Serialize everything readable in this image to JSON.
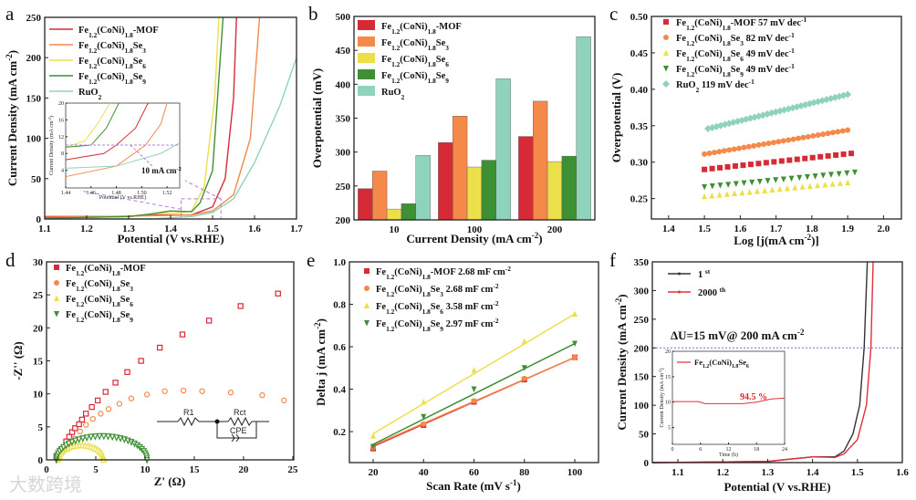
{
  "watermark": "大数跨境",
  "colors": {
    "mof": "#d62b36",
    "se3": "#f4894a",
    "se6": "#ece04a",
    "se9": "#3f8f35",
    "ruo2": "#8fd3bd",
    "purple": "#b77be0",
    "first": "#333333",
    "second": "#e0303a"
  },
  "chart_data": [
    {
      "id": "a",
      "panel_label": "a",
      "type": "line",
      "xlabel": "Potential (V vs.RHE)",
      "ylabel": "Current Density (mA cm^{-2})",
      "xlim": [
        1.1,
        1.7
      ],
      "ylim": [
        0,
        250
      ],
      "xticks": [
        "1.1",
        "1.2",
        "1.3",
        "1.4",
        "1.5",
        "1.6",
        "1.7"
      ],
      "yticks": [
        "0",
        "50",
        "100",
        "150",
        "200",
        "250"
      ],
      "legend": "top-left",
      "series": [
        {
          "name": "Fe_{1.2}(CoNi)_{1.8}-MOF",
          "color": "mof",
          "x": [
            1.1,
            1.3,
            1.35,
            1.45,
            1.5,
            1.53,
            1.55,
            1.557
          ],
          "y": [
            3,
            3,
            5,
            5,
            15,
            50,
            150,
            250
          ]
        },
        {
          "name": "Fe_{1.2}(CoNi)_{1.8}Se_{3}",
          "color": "se3",
          "x": [
            1.1,
            1.35,
            1.45,
            1.5,
            1.55,
            1.59,
            1.612
          ],
          "y": [
            2,
            4,
            5,
            10,
            30,
            100,
            250
          ]
        },
        {
          "name": "Fe_{1.2}(CoNi)_{1.8}Se_{6}",
          "color": "se6",
          "x": [
            1.1,
            1.3,
            1.35,
            1.43,
            1.45,
            1.48,
            1.505,
            1.515
          ],
          "y": [
            1,
            3,
            6,
            8,
            10,
            40,
            150,
            250
          ]
        },
        {
          "name": "Fe_{1.2}(CoNi)_{1.8}Se_{9}",
          "color": "se9",
          "x": [
            1.1,
            1.3,
            1.35,
            1.4,
            1.45,
            1.47,
            1.5,
            1.525
          ],
          "y": [
            1,
            3,
            6,
            10,
            9,
            20,
            60,
            250
          ]
        },
        {
          "name": "RuO_{2}",
          "color": "ruo2",
          "x": [
            1.1,
            1.35,
            1.45,
            1.5,
            1.55,
            1.6,
            1.66,
            1.7
          ],
          "y": [
            0,
            0,
            3,
            8,
            25,
            70,
            140,
            200
          ]
        }
      ],
      "inset": {
        "xlabel": "Potential (V vs.RHE)",
        "ylabel": "Current Density (mA cm^{-2})",
        "xlim": [
          1.44,
          1.53
        ],
        "ylim": [
          -0.2,
          20
        ],
        "xticks": [
          "1.44",
          "1.46",
          "1.48",
          "1.50",
          "1.52"
        ],
        "yticks": [
          "4",
          "8",
          "12",
          "16",
          "20"
        ],
        "annotation": "10 mA cm^{-2}",
        "ref_y": 10,
        "series": [
          {
            "color": "se6",
            "x": [
              1.44,
              1.455,
              1.465,
              1.475
            ],
            "y": [
              9.5,
              11,
              15,
              20
            ]
          },
          {
            "color": "se9",
            "x": [
              1.44,
              1.46,
              1.472,
              1.482
            ],
            "y": [
              9.5,
              10,
              14,
              20
            ]
          },
          {
            "color": "mof",
            "x": [
              1.44,
              1.47,
              1.48,
              1.495,
              1.505
            ],
            "y": [
              6.5,
              8,
              10,
              14,
              20
            ]
          },
          {
            "color": "se3",
            "x": [
              1.44,
              1.48,
              1.503,
              1.515,
              1.52
            ],
            "y": [
              2.5,
              5,
              10,
              15,
              20
            ]
          },
          {
            "color": "ruo2",
            "x": [
              1.44,
              1.48,
              1.515,
              1.53
            ],
            "y": [
              4.5,
              5,
              8,
              10.5
            ]
          }
        ]
      }
    },
    {
      "id": "b",
      "panel_label": "b",
      "type": "bar",
      "xlabel": "Current Density (mA cm^{-2})",
      "ylabel": "Overpotential (mV)",
      "ylim": [
        200,
        500
      ],
      "categories": [
        "10",
        "100",
        "200"
      ],
      "yticks": [
        "200",
        "250",
        "300",
        "350",
        "400",
        "450",
        "500"
      ],
      "legend": "top-left",
      "series": [
        {
          "name": "Fe_{1.2}(CoNi)_{1.8}-MOF",
          "color": "mof",
          "values": [
            246,
            314,
            323
          ]
        },
        {
          "name": "Fe_{1.2}(CoNi)_{1.8}Se_{3}",
          "color": "se3",
          "values": [
            272,
            353,
            375
          ]
        },
        {
          "name": "Fe_{1.2}(CoNi)_{1.8}Se_{6}",
          "color": "se6",
          "values": [
            216,
            278,
            286
          ]
        },
        {
          "name": "Fe_{1.2}(CoNi)_{1.8}Se_{9}",
          "color": "se9",
          "values": [
            224,
            288,
            294
          ]
        },
        {
          "name": "RuO_{2}",
          "color": "ruo2",
          "values": [
            295,
            408,
            470
          ]
        }
      ]
    },
    {
      "id": "c",
      "panel_label": "c",
      "type": "scatter",
      "xlabel": "Log [j(mA cm^{-2})]",
      "ylabel": "Overpotential (V)",
      "xlim": [
        1.352,
        2.05
      ],
      "ylim": [
        0.222,
        0.5
      ],
      "xticks": [
        "1.4",
        "1.5",
        "1.6",
        "1.7",
        "1.8",
        "1.9",
        "2.0"
      ],
      "yticks": [
        "0.25",
        "0.30",
        "0.35",
        "0.40",
        "0.45",
        "0.50"
      ],
      "legend": "top-left",
      "series": [
        {
          "name": "Fe_{1.2}(CoNi)_{1.8}-MOF  57 mV dec^{-1}",
          "color": "mof",
          "marker": "square",
          "x_range": [
            1.5,
            1.91
          ],
          "y_range": [
            0.29,
            0.312
          ],
          "n": 20
        },
        {
          "name": "Fe_{1.2}(CoNi)_{1.8}Se_{3}  82 mV dec^{-1}",
          "color": "se3",
          "marker": "circle",
          "x_range": [
            1.5,
            1.9
          ],
          "y_range": [
            0.311,
            0.344
          ],
          "n": 30
        },
        {
          "name": "Fe_{1.2}(CoNi)_{1.8}Se_{6}  49 mV dec^{-1}",
          "color": "se6",
          "marker": "triangle",
          "x_range": [
            1.5,
            1.9
          ],
          "y_range": [
            0.253,
            0.272
          ],
          "n": 20
        },
        {
          "name": "Fe_{1.2}(CoNi)_{1.8}Se_{9}  49 mV dec^{-1}",
          "color": "se9",
          "marker": "triangle-down",
          "x_range": [
            1.5,
            1.92
          ],
          "y_range": [
            0.266,
            0.286
          ],
          "n": 20
        },
        {
          "name": "RuO_{2}  119 mV dec^{-1}",
          "color": "ruo2",
          "marker": "diamond",
          "x_range": [
            1.51,
            1.9
          ],
          "y_range": [
            0.346,
            0.393
          ],
          "n": 34
        }
      ]
    },
    {
      "id": "d",
      "panel_label": "d",
      "type": "scatter",
      "xlabel": "Z' (Ω)",
      "ylabel": "-Z'' (Ω)",
      "xlim": [
        0,
        25.1
      ],
      "ylim": [
        0,
        30
      ],
      "xticks": [
        "0",
        "5",
        "10",
        "15",
        "20",
        "25"
      ],
      "yticks": [
        "0",
        "5",
        "10",
        "15",
        "20",
        "25",
        "30"
      ],
      "legend": "top-left",
      "circuit": {
        "r1": "R1",
        "rct": "Rct",
        "cpe": "CPE"
      },
      "series": [
        {
          "name": "Fe_{1.2}(CoNi)_{1.8}-MOF",
          "color": "mof",
          "marker": "square",
          "x": [
            1,
            1.5,
            2,
            2.3,
            2.6,
            2.9,
            3.3,
            3.6,
            4,
            4.6,
            5.2,
            6,
            7,
            8.2,
            9.6,
            11.5,
            13.8,
            16.5,
            19.7,
            23.5
          ],
          "y": [
            0.5,
            1.5,
            2.8,
            3.5,
            4.2,
            4.8,
            5.4,
            6.1,
            7,
            8,
            9,
            10.3,
            11.7,
            13.3,
            15,
            17,
            19,
            21.1,
            23.3,
            25.2
          ]
        },
        {
          "name": "Fe_{1.2}(CoNi)_{1.8}Se_{3}",
          "color": "se3",
          "marker": "circle",
          "x": [
            1,
            1.6,
            2.2,
            2.8,
            3.4,
            4,
            4.7,
            5.5,
            6.3,
            7.4,
            8.6,
            10.2,
            12,
            13.9,
            15.8,
            18.7,
            21.9,
            24.1
          ],
          "y": [
            0.3,
            1.2,
            2.2,
            3.2,
            4.3,
            5.3,
            6.2,
            7,
            7.7,
            8.5,
            9.3,
            9.9,
            10.4,
            10.5,
            10.4,
            10.2,
            9.8,
            9
          ]
        },
        {
          "name": "Fe_{1.2}(CoNi)_{1.8}Se_{6}",
          "color": "se6",
          "marker": "triangle",
          "arc": {
            "start": 1.2,
            "end": 5.8,
            "peak": 2.2
          },
          "n": 26
        },
        {
          "name": "Fe_{1.2}(CoNi)_{1.8}Se_{9}",
          "color": "se9",
          "marker": "triangle-down",
          "arc": {
            "start": 1.0,
            "end": 10.2,
            "peak": 3.6
          },
          "n": 34
        }
      ]
    },
    {
      "id": "e",
      "panel_label": "e",
      "type": "scatter",
      "xlabel": "Scan Rate (mV s^{-1})",
      "ylabel": "Delta j (mA cm^{-2})",
      "xlim": [
        10.6,
        109.4
      ],
      "ylim": [
        0.054,
        1.0
      ],
      "xticks": [
        "20",
        "40",
        "60",
        "80",
        "100"
      ],
      "yticks": [
        "0.2",
        "0.4",
        "0.6",
        "0.8",
        "1.0"
      ],
      "legend": "top-left",
      "x": [
        20,
        40,
        60,
        80,
        100
      ],
      "series": [
        {
          "name": "Fe_{1.2}(CoNi)_{1.8}-MOF 2.68 mF cm^{-2}",
          "color": "mof",
          "marker": "square",
          "y": [
            0.12,
            0.23,
            0.34,
            0.445,
            0.55
          ]
        },
        {
          "name": "Fe_{1.2}(CoNi)_{1.8}Se_{3} 2.68 mF cm^{-2}",
          "color": "se3",
          "marker": "circle",
          "y": [
            0.125,
            0.235,
            0.345,
            0.45,
            0.55
          ]
        },
        {
          "name": "Fe_{1.2}(CoNi)_{1.8}Se_{6} 3.58 mF cm^{-2}",
          "color": "se6",
          "marker": "triangle",
          "y": [
            0.18,
            0.34,
            0.49,
            0.625,
            0.755
          ]
        },
        {
          "name": "Fe_{1.2}(CoNi)_{1.8}Se_{9} 2.97 mF cm^{-2}",
          "color": "se9",
          "marker": "triangle-down",
          "y": [
            0.13,
            0.27,
            0.4,
            0.5,
            0.615
          ]
        }
      ]
    },
    {
      "id": "f",
      "panel_label": "f",
      "type": "line",
      "xlabel": "Potential (V vs.RHE)",
      "ylabel": "Current Density (mA cm^{-2})",
      "xlim": [
        1.043,
        1.6
      ],
      "ylim": [
        0,
        350
      ],
      "xticks": [
        "1.1",
        "1.2",
        "1.3",
        "1.4",
        "1.5",
        "1.6"
      ],
      "yticks": [
        "0",
        "50",
        "100",
        "150",
        "200",
        "250",
        "300",
        "350"
      ],
      "legend": "top-left",
      "annotation": "ΔU=15 mV@ 200 mA cm^{-2}",
      "ref_y": 200,
      "series": [
        {
          "name": "1 ^{st}",
          "color": "first",
          "x": [
            1.043,
            1.3,
            1.35,
            1.4,
            1.45,
            1.47,
            1.49,
            1.505,
            1.515,
            1.522
          ],
          "y": [
            0,
            2,
            6,
            10,
            10,
            20,
            50,
            100,
            200,
            350
          ]
        },
        {
          "name": "2000 ^{th}",
          "color": "second",
          "x": [
            1.043,
            1.3,
            1.35,
            1.4,
            1.45,
            1.47,
            1.5,
            1.52,
            1.53,
            1.535
          ],
          "y": [
            0,
            2,
            6,
            10,
            9,
            15,
            40,
            100,
            200,
            350
          ]
        }
      ],
      "inset": {
        "xlabel": "Time (h)",
        "ylabel": "Current Density (mA cm^{-2})",
        "xlim": [
          0,
          24
        ],
        "ylim": [
          1.7,
          20
        ],
        "xticks": [
          "0",
          "6",
          "12",
          "18",
          "24"
        ],
        "yticks": [
          "5",
          "10",
          "15",
          "20"
        ],
        "legend": "Fe_{1.2}(CoNi)_{1.8}Se_{6}",
        "annotation": "94.5 %",
        "series": [
          {
            "color": "second",
            "x": [
              0,
              5.5,
              7,
              15,
              18,
              21,
              24
            ],
            "y": [
              10.1,
              10.1,
              9.7,
              9.7,
              10,
              10.6,
              10.8
            ]
          }
        ]
      }
    }
  ]
}
